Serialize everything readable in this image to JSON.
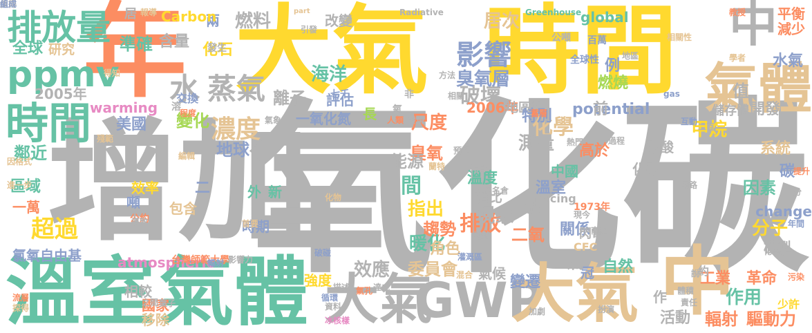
{
  "palette": {
    "gray": "#b3b3b3",
    "orange": "#fc8d62",
    "yellow": "#ffd92f",
    "green": "#66c2a5",
    "blue": "#8da0cb",
    "pink": "#e78ac3",
    "lime": "#a6d854",
    "tan": "#e5c494"
  },
  "words": [
    {
      "text": "增加",
      "color": "gray"
    },
    {
      "text": "氧化碳",
      "color": "gray"
    },
    {
      "text": "大氣",
      "color": "yellow"
    },
    {
      "text": "時間",
      "color": "yellow"
    },
    {
      "text": "年",
      "color": "orange"
    },
    {
      "text": "溫室",
      "color": "green"
    },
    {
      "text": "氣體",
      "color": "green"
    },
    {
      "text": "大氣",
      "color": "gray"
    },
    {
      "text": "GWP",
      "color": "gray"
    },
    {
      "text": "大氣",
      "color": "tan"
    },
    {
      "text": "中",
      "color": "tan"
    },
    {
      "text": "氣體",
      "color": "tan"
    },
    {
      "text": "中",
      "color": "gray"
    },
    {
      "text": "時間",
      "color": "green"
    },
    {
      "text": "排放量",
      "color": "green"
    },
    {
      "text": "ppmv",
      "color": "green"
    },
    {
      "text": "水",
      "color": "gray"
    },
    {
      "text": "蒸氣",
      "color": "gray"
    },
    {
      "text": "影響",
      "color": "blue"
    },
    {
      "text": "濃度",
      "color": "tan"
    },
    {
      "text": "化學",
      "color": "tan"
    },
    {
      "text": "破壞",
      "color": "gray"
    },
    {
      "text": "全球",
      "color": "green"
    },
    {
      "text": "研究",
      "color": "tan"
    },
    {
      "text": "準確",
      "color": "green"
    },
    {
      "text": "含量",
      "color": "gray"
    },
    {
      "text": "兩",
      "color": "blue"
    },
    {
      "text": "燃料",
      "color": "gray"
    },
    {
      "text": "改變",
      "color": "gray"
    },
    {
      "text": "海洋",
      "color": "green"
    },
    {
      "text": "評估",
      "color": "blue"
    },
    {
      "text": "居次",
      "color": "tan"
    },
    {
      "text": "global",
      "color": "green"
    },
    {
      "text": "平衡",
      "color": "orange"
    },
    {
      "text": "減少",
      "color": "orange"
    },
    {
      "text": "水氣",
      "color": "blue"
    },
    {
      "text": "Carbon",
      "color": "yellow"
    },
    {
      "text": "化石",
      "color": "yellow"
    },
    {
      "text": "2005年",
      "color": "gray"
    },
    {
      "text": "warming",
      "color": "pink"
    },
    {
      "text": "離子",
      "color": "gray"
    },
    {
      "text": "2006年",
      "color": "orange"
    },
    {
      "text": "臭氧層",
      "color": "blue"
    },
    {
      "text": "地區性",
      "color": "gray"
    },
    {
      "text": "potential",
      "color": "blue"
    },
    {
      "text": "燃燒",
      "color": "lime"
    },
    {
      "text": "開發",
      "color": "gray"
    },
    {
      "text": "儲存體",
      "color": "gray"
    },
    {
      "text": "前",
      "color": "gray"
    },
    {
      "text": "例",
      "color": "blue"
    },
    {
      "text": "值",
      "color": "gray"
    },
    {
      "text": "一氧化氮",
      "color": "blue"
    },
    {
      "text": "長",
      "color": "lime"
    },
    {
      "text": "尺度",
      "color": "orange"
    },
    {
      "text": "特別",
      "color": "blue"
    },
    {
      "text": "變化",
      "color": "lime"
    },
    {
      "text": "美國",
      "color": "blue"
    },
    {
      "text": "甲烷",
      "color": "yellow"
    },
    {
      "text": "鄰近",
      "color": "green"
    },
    {
      "text": "地球",
      "color": "blue"
    },
    {
      "text": "測量",
      "color": "gray"
    },
    {
      "text": "高於",
      "color": "orange"
    },
    {
      "text": "碳酸",
      "color": "gray"
    },
    {
      "text": "系統",
      "color": "tan"
    },
    {
      "text": "碳",
      "color": "blue"
    },
    {
      "text": "因素",
      "color": "green"
    },
    {
      "text": "區域",
      "color": "green"
    },
    {
      "text": "臭氧",
      "color": "orange"
    },
    {
      "text": "能源",
      "color": "gray"
    },
    {
      "text": "中國",
      "color": "green"
    },
    {
      "text": "化碳",
      "color": "gray"
    },
    {
      "text": "溫度",
      "color": "green"
    },
    {
      "text": "溫室",
      "color": "blue"
    },
    {
      "text": "間",
      "color": "green"
    },
    {
      "text": "相比",
      "color": "gray"
    },
    {
      "text": "二",
      "color": "blue"
    },
    {
      "text": "外",
      "color": "green"
    },
    {
      "text": "新",
      "color": "green"
    },
    {
      "text": "效率",
      "color": "yellow"
    },
    {
      "text": "一萬",
      "color": "orange"
    },
    {
      "text": "噸",
      "color": "blue"
    },
    {
      "text": "包含",
      "color": "tan"
    },
    {
      "text": "指出",
      "color": "yellow"
    },
    {
      "text": "佔",
      "color": "gray"
    },
    {
      "text": "分子",
      "color": "yellow"
    },
    {
      "text": "change",
      "color": "blue"
    },
    {
      "text": "超過",
      "color": "yellow"
    },
    {
      "text": "排放",
      "color": "orange"
    },
    {
      "text": "現象",
      "color": "gray"
    },
    {
      "text": "時期",
      "color": "blue"
    },
    {
      "text": "趨勢",
      "color": "orange"
    },
    {
      "text": "暖化",
      "color": "green"
    },
    {
      "text": "關係",
      "color": "blue"
    },
    {
      "text": "二氧",
      "color": "orange"
    },
    {
      "text": "模型",
      "color": "gray"
    },
    {
      "text": "氯氧自由基",
      "color": "blue"
    },
    {
      "text": "atmospheric",
      "color": "pink"
    },
    {
      "text": "角色",
      "color": "tan"
    },
    {
      "text": "效應",
      "color": "gray"
    },
    {
      "text": "委員會",
      "color": "tan"
    },
    {
      "text": "氣候",
      "color": "gray"
    },
    {
      "text": "自然",
      "color": "green"
    },
    {
      "text": "冠",
      "color": "blue"
    },
    {
      "text": "工業",
      "color": "orange"
    },
    {
      "text": "革命",
      "color": "orange"
    },
    {
      "text": "強度",
      "color": "yellow"
    },
    {
      "text": "變遷",
      "color": "blue"
    },
    {
      "text": "相較",
      "color": "gray"
    },
    {
      "text": "國家",
      "color": "orange"
    },
    {
      "text": "移除",
      "color": "tan"
    },
    {
      "text": "作用",
      "color": "green"
    },
    {
      "text": "輻射",
      "color": "orange"
    },
    {
      "text": "驅動力",
      "color": "orange"
    },
    {
      "text": "活動",
      "color": "gray"
    },
    {
      "text": "作",
      "color": "gray"
    },
    {
      "text": "氣",
      "color": "gray"
    },
    {
      "text": "約",
      "color": "gray"
    },
    {
      "text": "CFC",
      "color": "tan"
    },
    {
      "text": "閃電",
      "color": "gray"
    },
    {
      "text": "forcing",
      "color": "gray"
    },
    {
      "text": "1973年",
      "color": "orange"
    },
    {
      "text": "居",
      "color": "gray"
    },
    {
      "text": "報導",
      "color": "tan"
    },
    {
      "text": "part",
      "color": "tan"
    },
    {
      "text": "Radiative",
      "color": "gray"
    },
    {
      "text": "Greenhouse",
      "color": "green"
    },
    {
      "text": "教授",
      "color": "orange"
    },
    {
      "text": "gas",
      "color": "blue"
    },
    {
      "text": "交換",
      "color": "blue"
    },
    {
      "text": "發生",
      "color": "gray"
    },
    {
      "text": "台灣師範大學",
      "color": "orange"
    },
    {
      "text": "影響力",
      "color": "gray"
    },
    {
      "text": "公約",
      "color": "orange"
    },
    {
      "text": "化物",
      "color": "tan"
    },
    {
      "text": "人類",
      "color": "orange"
    },
    {
      "text": "發現",
      "color": "gray"
    },
    {
      "text": "溶",
      "color": "gray"
    },
    {
      "text": "氧",
      "color": "gray"
    },
    {
      "text": "非",
      "color": "gray"
    },
    {
      "text": "七千",
      "color": "blue"
    },
    {
      "text": "全球性",
      "color": "blue"
    },
    {
      "text": "百萬",
      "color": "blue"
    },
    {
      "text": "公噸",
      "color": "gray"
    },
    {
      "text": "得知",
      "color": "tan"
    },
    {
      "text": "導致",
      "color": "gray"
    },
    {
      "text": "編輯",
      "color": "tan"
    },
    {
      "text": "流層",
      "color": "orange"
    },
    {
      "text": "探得",
      "color": "tan"
    },
    {
      "text": "地點",
      "color": "gray"
    },
    {
      "text": "葉子",
      "color": "gray"
    },
    {
      "text": "輻射",
      "color": "blue"
    },
    {
      "text": "網路",
      "color": "gray"
    },
    {
      "text": "年間",
      "color": "blue"
    },
    {
      "text": "污染",
      "color": "orange"
    },
    {
      "text": "化學系",
      "color": "gray"
    },
    {
      "text": "少許",
      "color": "yellow"
    },
    {
      "text": "顯示",
      "color": "tan"
    },
    {
      "text": "責任",
      "color": "gray"
    },
    {
      "text": "冰核樣",
      "color": "pink"
    },
    {
      "text": "加劇",
      "color": "gray"
    },
    {
      "text": "扮演",
      "color": "gray"
    },
    {
      "text": "灌溉區",
      "color": "blue"
    },
    {
      "text": "描述",
      "color": "gray"
    },
    {
      "text": "循環",
      "color": "blue"
    },
    {
      "text": "資料",
      "color": "gray"
    },
    {
      "text": "二百",
      "color": "gray"
    },
    {
      "text": "互動",
      "color": "blue"
    },
    {
      "text": "分",
      "color": "gray"
    },
    {
      "text": "提升",
      "color": "orange"
    },
    {
      "text": "進一步",
      "color": "tan"
    },
    {
      "text": "因格式",
      "color": "tan"
    },
    {
      "text": "殘範",
      "color": "tan"
    },
    {
      "text": "程度",
      "color": "orange"
    },
    {
      "text": "首要",
      "color": "tan"
    },
    {
      "text": "之間",
      "color": "gray"
    },
    {
      "text": "氣孔",
      "color": "orange"
    },
    {
      "text": "預知",
      "color": "gray"
    },
    {
      "text": "蘭特",
      "color": "tan"
    },
    {
      "text": "光合",
      "color": "gray"
    },
    {
      "text": "熱門",
      "color": "gray"
    },
    {
      "text": "過程",
      "color": "gray"
    },
    {
      "text": "學者",
      "color": "tan"
    },
    {
      "text": "方法",
      "color": "gray"
    },
    {
      "text": "相關",
      "color": "gray"
    },
    {
      "text": "相關性",
      "color": "tan"
    },
    {
      "text": "引發",
      "color": "gray"
    },
    {
      "text": "南極",
      "color": "gray"
    },
    {
      "text": "體積",
      "color": "gray"
    },
    {
      "text": "聚名倉",
      "color": "gray"
    },
    {
      "text": "達成",
      "color": "gray"
    },
    {
      "text": "地區",
      "color": "gray"
    },
    {
      "text": "蓄層",
      "color": "orange"
    },
    {
      "text": "氣象",
      "color": "gray"
    },
    {
      "text": "破碰",
      "color": "blue"
    },
    {
      "text": "混合",
      "color": "tan"
    },
    {
      "text": "說",
      "color": "gray"
    },
    {
      "text": "現今",
      "color": "gray"
    },
    {
      "text": "值得",
      "color": "gray"
    },
    {
      "text": "組成",
      "color": "blue"
    }
  ]
}
